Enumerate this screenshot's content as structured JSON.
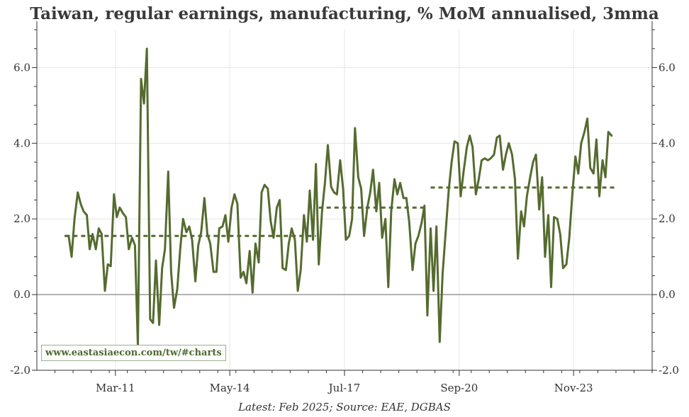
{
  "chart_data": {
    "type": "line",
    "title": "Taiwan, regular earnings, manufacturing, % MoM annualised, 3mma",
    "xlabel": "",
    "ylabel": "",
    "ylim": [
      -2.0,
      7.0
    ],
    "yticks": [
      "-2.0",
      "0.0",
      "2.0",
      "4.0",
      "6.0"
    ],
    "ytick_values": [
      -2,
      0,
      2,
      4,
      6
    ],
    "xticks": [
      "Mar-11",
      "May-14",
      "Jul-17",
      "Sep-20",
      "Nov-23"
    ],
    "xtick_positions": [
      2011.17,
      2014.33,
      2017.5,
      2020.67,
      2023.83
    ],
    "xlim": [
      2009.0,
      2026.0
    ],
    "grid": true,
    "colors": {
      "line": "#556b2f",
      "zero": "#999999",
      "grid": "#e6e6e6"
    },
    "series": [
      {
        "values": [
          [
            2009.79,
            1.55
          ],
          [
            2009.88,
            1.55
          ],
          [
            2009.96,
            1.0
          ],
          [
            2010.04,
            2.0
          ],
          [
            2010.13,
            2.7
          ],
          [
            2010.21,
            2.4
          ],
          [
            2010.29,
            2.2
          ],
          [
            2010.38,
            2.1
          ],
          [
            2010.46,
            1.2
          ],
          [
            2010.54,
            1.6
          ],
          [
            2010.63,
            1.2
          ],
          [
            2010.71,
            1.75
          ],
          [
            2010.79,
            1.6
          ],
          [
            2010.88,
            0.1
          ],
          [
            2010.96,
            0.8
          ],
          [
            2011.04,
            0.75
          ],
          [
            2011.13,
            2.65
          ],
          [
            2011.21,
            2.05
          ],
          [
            2011.29,
            2.3
          ],
          [
            2011.38,
            2.15
          ],
          [
            2011.46,
            2.05
          ],
          [
            2011.54,
            1.2
          ],
          [
            2011.63,
            1.5
          ],
          [
            2011.71,
            1.3
          ],
          [
            2011.79,
            -1.35
          ],
          [
            2011.88,
            5.7
          ],
          [
            2011.96,
            5.05
          ],
          [
            2012.04,
            6.5
          ],
          [
            2012.13,
            -0.65
          ],
          [
            2012.21,
            -0.75
          ],
          [
            2012.29,
            0.9
          ],
          [
            2012.38,
            -0.8
          ],
          [
            2012.46,
            0.7
          ],
          [
            2012.54,
            1.2
          ],
          [
            2012.63,
            3.25
          ],
          [
            2012.71,
            0.6
          ],
          [
            2012.79,
            -0.35
          ],
          [
            2012.88,
            0.15
          ],
          [
            2012.96,
            1.2
          ],
          [
            2013.04,
            2.0
          ],
          [
            2013.13,
            1.65
          ],
          [
            2013.21,
            1.8
          ],
          [
            2013.29,
            1.45
          ],
          [
            2013.38,
            0.35
          ],
          [
            2013.46,
            1.3
          ],
          [
            2013.54,
            1.65
          ],
          [
            2013.63,
            2.55
          ],
          [
            2013.71,
            1.6
          ],
          [
            2013.79,
            1.35
          ],
          [
            2013.88,
            0.6
          ],
          [
            2013.96,
            0.6
          ],
          [
            2014.04,
            1.75
          ],
          [
            2014.13,
            1.8
          ],
          [
            2014.21,
            2.1
          ],
          [
            2014.29,
            1.4
          ],
          [
            2014.38,
            2.3
          ],
          [
            2014.46,
            2.65
          ],
          [
            2014.54,
            2.4
          ],
          [
            2014.63,
            0.45
          ],
          [
            2014.71,
            0.6
          ],
          [
            2014.79,
            0.3
          ],
          [
            2014.88,
            1.15
          ],
          [
            2014.96,
            0.05
          ],
          [
            2015.04,
            1.35
          ],
          [
            2015.13,
            0.85
          ],
          [
            2015.21,
            2.7
          ],
          [
            2015.29,
            2.9
          ],
          [
            2015.38,
            2.8
          ],
          [
            2015.46,
            1.95
          ],
          [
            2015.54,
            1.5
          ],
          [
            2015.63,
            2.3
          ],
          [
            2015.71,
            2.5
          ],
          [
            2015.79,
            0.7
          ],
          [
            2015.88,
            0.65
          ],
          [
            2015.96,
            1.35
          ],
          [
            2016.04,
            1.75
          ],
          [
            2016.13,
            1.45
          ],
          [
            2016.21,
            0.1
          ],
          [
            2016.29,
            0.65
          ],
          [
            2016.38,
            2.1
          ],
          [
            2016.46,
            1.4
          ],
          [
            2016.54,
            2.75
          ],
          [
            2016.63,
            1.45
          ],
          [
            2016.71,
            3.45
          ],
          [
            2016.79,
            0.8
          ],
          [
            2016.88,
            2.2
          ],
          [
            2016.96,
            2.95
          ],
          [
            2017.04,
            3.95
          ],
          [
            2017.13,
            2.85
          ],
          [
            2017.21,
            2.7
          ],
          [
            2017.29,
            2.65
          ],
          [
            2017.38,
            3.55
          ],
          [
            2017.46,
            2.8
          ],
          [
            2017.54,
            1.45
          ],
          [
            2017.63,
            1.55
          ],
          [
            2017.71,
            2.0
          ],
          [
            2017.79,
            4.4
          ],
          [
            2017.88,
            3.1
          ],
          [
            2017.96,
            2.8
          ],
          [
            2018.04,
            1.55
          ],
          [
            2018.13,
            2.3
          ],
          [
            2018.21,
            2.7
          ],
          [
            2018.29,
            3.3
          ],
          [
            2018.38,
            2.2
          ],
          [
            2018.46,
            2.95
          ],
          [
            2018.54,
            1.5
          ],
          [
            2018.63,
            2.0
          ],
          [
            2018.71,
            0.2
          ],
          [
            2018.79,
            2.2
          ],
          [
            2018.88,
            3.05
          ],
          [
            2018.96,
            2.65
          ],
          [
            2019.04,
            2.95
          ],
          [
            2019.13,
            2.55
          ],
          [
            2019.21,
            2.55
          ],
          [
            2019.29,
            1.9
          ],
          [
            2019.38,
            0.65
          ],
          [
            2019.46,
            1.35
          ],
          [
            2019.54,
            1.55
          ],
          [
            2019.63,
            1.9
          ],
          [
            2019.71,
            2.35
          ],
          [
            2019.79,
            -0.55
          ],
          [
            2019.88,
            1.75
          ],
          [
            2019.96,
            0.1
          ],
          [
            2020.04,
            1.8
          ],
          [
            2020.13,
            -1.25
          ],
          [
            2020.21,
            0.55
          ],
          [
            2020.29,
            1.6
          ],
          [
            2020.38,
            2.75
          ],
          [
            2020.46,
            3.5
          ],
          [
            2020.54,
            4.05
          ],
          [
            2020.63,
            4.0
          ],
          [
            2020.71,
            2.6
          ],
          [
            2020.79,
            3.25
          ],
          [
            2020.88,
            3.9
          ],
          [
            2020.96,
            4.2
          ],
          [
            2021.04,
            3.9
          ],
          [
            2021.13,
            2.65
          ],
          [
            2021.21,
            3.05
          ],
          [
            2021.29,
            3.55
          ],
          [
            2021.38,
            3.6
          ],
          [
            2021.46,
            3.55
          ],
          [
            2021.54,
            3.6
          ],
          [
            2021.63,
            3.7
          ],
          [
            2021.71,
            4.15
          ],
          [
            2021.79,
            4.2
          ],
          [
            2021.88,
            3.3
          ],
          [
            2021.96,
            3.7
          ],
          [
            2022.04,
            4.0
          ],
          [
            2022.13,
            3.7
          ],
          [
            2022.21,
            3.05
          ],
          [
            2022.29,
            0.95
          ],
          [
            2022.38,
            2.2
          ],
          [
            2022.46,
            1.8
          ],
          [
            2022.54,
            2.6
          ],
          [
            2022.63,
            3.1
          ],
          [
            2022.71,
            3.5
          ],
          [
            2022.79,
            3.7
          ],
          [
            2022.88,
            2.25
          ],
          [
            2022.96,
            3.1
          ],
          [
            2023.04,
            1.0
          ],
          [
            2023.13,
            2.1
          ],
          [
            2023.21,
            0.2
          ],
          [
            2023.29,
            2.05
          ],
          [
            2023.38,
            2.0
          ],
          [
            2023.46,
            1.6
          ],
          [
            2023.54,
            0.7
          ],
          [
            2023.63,
            0.8
          ],
          [
            2023.71,
            1.5
          ],
          [
            2023.79,
            2.6
          ],
          [
            2023.88,
            3.65
          ],
          [
            2023.96,
            3.2
          ],
          [
            2024.04,
            4.0
          ],
          [
            2024.13,
            4.3
          ],
          [
            2024.21,
            4.65
          ],
          [
            2024.29,
            3.35
          ],
          [
            2024.38,
            3.2
          ],
          [
            2024.46,
            4.1
          ],
          [
            2024.54,
            2.6
          ],
          [
            2024.63,
            3.55
          ],
          [
            2024.71,
            3.1
          ],
          [
            2024.79,
            4.3
          ],
          [
            2024.88,
            4.2
          ]
        ]
      }
    ],
    "averages": [
      {
        "x": [
          2009.79,
          2016.71
        ],
        "value": 1.55
      },
      {
        "x": [
          2016.79,
          2019.71
        ],
        "value": 2.3
      },
      {
        "x": [
          2019.88,
          2025.04
        ],
        "value": 2.83
      }
    ],
    "watermark": "www.eastasiaecon.com/tw/#charts",
    "source": "Latest: Feb 2025; Source: EAE, DGBAS"
  }
}
